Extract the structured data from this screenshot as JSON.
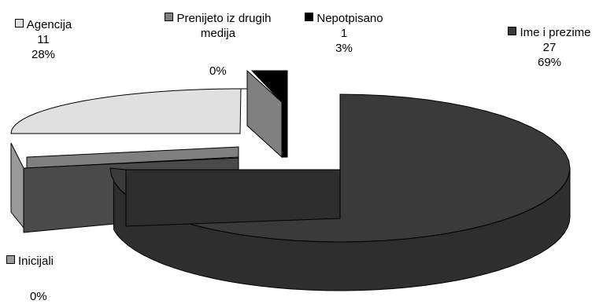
{
  "colors": {
    "agencija": "#e0e0e0",
    "prenijeto": "#808080",
    "nepotpisano": "#000000",
    "ime": "#3a3a3a",
    "inicijali": "#9a9a9a"
  },
  "chart_data": {
    "type": "pie",
    "three_d": true,
    "exploded": true,
    "title": "",
    "slices": [
      {
        "name": "Ime i prezime",
        "count": "27",
        "percent": "69%",
        "value": 27,
        "color": "#3a3a3a"
      },
      {
        "name": "Agencija",
        "count": "11",
        "percent": "28%",
        "value": 11,
        "color": "#e0e0e0"
      },
      {
        "name": "Prenijeto iz drugih medija",
        "name_line1": "Prenijeto iz drugih",
        "name_line2": "medija",
        "percent": "0%",
        "value": 0,
        "color": "#808080"
      },
      {
        "name": "Nepotpisano",
        "count": "1",
        "percent": "3%",
        "value": 1,
        "color": "#000000"
      },
      {
        "name": "Inicijali",
        "percent": "0%",
        "value": 0,
        "color": "#9a9a9a"
      }
    ]
  }
}
